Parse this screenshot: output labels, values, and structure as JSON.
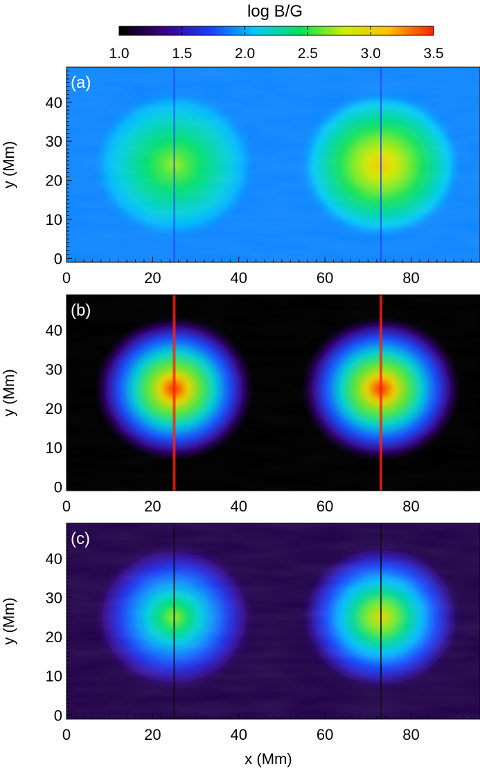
{
  "colorbar": {
    "title": "log B/G",
    "ticks": [
      "1.0",
      "1.5",
      "2.0",
      "2.5",
      "3.0",
      "3.5"
    ],
    "range": [
      1.0,
      3.5
    ],
    "colormap": [
      "#000000",
      "#3a0080",
      "#1a3cff",
      "#00c8ff",
      "#00e060",
      "#c8f000",
      "#ffc000",
      "#ff2000"
    ]
  },
  "chart_data": [
    {
      "type": "heatmap",
      "panel_label": "(a)",
      "ylabel": "y (Mm)",
      "xlabel": "",
      "x_ticks": [
        "0",
        "20",
        "40",
        "60",
        "80"
      ],
      "y_ticks": [
        "0",
        "10",
        "20",
        "30",
        "40"
      ],
      "xlim": [
        0,
        96
      ],
      "ylim": [
        -1,
        49
      ],
      "background_value": 1.9,
      "sources": [
        {
          "x": 25,
          "y": 24,
          "peak_value": 2.7
        },
        {
          "x": 73,
          "y": 24,
          "peak_value": 3.1
        }
      ]
    },
    {
      "type": "heatmap",
      "panel_label": "(b)",
      "ylabel": "y (Mm)",
      "xlabel": "",
      "x_ticks": [
        "0",
        "20",
        "40",
        "60",
        "80"
      ],
      "y_ticks": [
        "0",
        "10",
        "20",
        "30",
        "40"
      ],
      "xlim": [
        0,
        96
      ],
      "ylim": [
        -1,
        49
      ],
      "background_value": 1.0,
      "sources": [
        {
          "x": 25,
          "y": 25,
          "peak_value": 3.5
        },
        {
          "x": 73,
          "y": 25,
          "peak_value": 3.5
        }
      ]
    },
    {
      "type": "heatmap",
      "panel_label": "(c)",
      "ylabel": "y (Mm)",
      "xlabel": "x (Mm)",
      "x_ticks": [
        "0",
        "20",
        "40",
        "60",
        "80"
      ],
      "y_ticks": [
        "0",
        "10",
        "20",
        "30",
        "40"
      ],
      "xlim": [
        0,
        96
      ],
      "ylim": [
        -1,
        49
      ],
      "background_value": 1.2,
      "sources": [
        {
          "x": 25,
          "y": 25,
          "peak_value": 2.7
        },
        {
          "x": 73,
          "y": 25,
          "peak_value": 3.0
        }
      ]
    }
  ]
}
